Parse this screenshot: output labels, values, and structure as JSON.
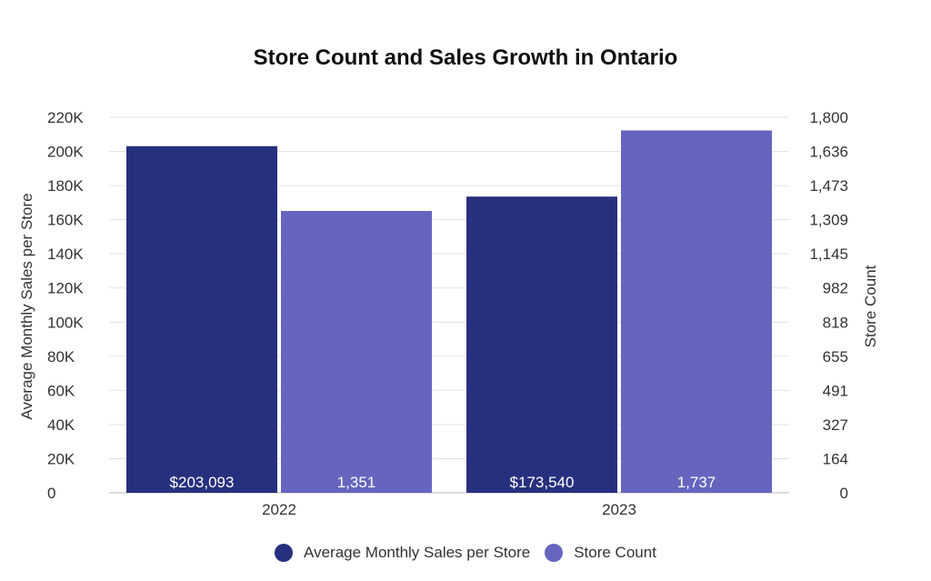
{
  "chart_data": {
    "type": "bar",
    "title": "Store Count and Sales Growth in Ontario",
    "categories": [
      "2022",
      "2023"
    ],
    "series": [
      {
        "name": "Average Monthly Sales per Store",
        "axis": "left",
        "color": "#27307e",
        "values": [
          203093,
          173540
        ],
        "labels": [
          "$203,093",
          "$173,540"
        ]
      },
      {
        "name": "Store Count",
        "axis": "right",
        "color": "#6565c0",
        "values": [
          1351,
          1737
        ],
        "labels": [
          "1,351",
          "1,737"
        ]
      }
    ],
    "ylabel": "Average Monthly Sales per Store",
    "ylim": [
      0,
      220000
    ],
    "yticks": [
      "0",
      "20K",
      "40K",
      "60K",
      "80K",
      "100K",
      "120K",
      "140K",
      "160K",
      "180K",
      "200K",
      "220K"
    ],
    "y2label": "Store Count",
    "y2lim": [
      0,
      1800
    ],
    "y2ticks": [
      "0",
      "164",
      "327",
      "491",
      "655",
      "818",
      "982",
      "1,145",
      "1,309",
      "1,473",
      "1,636",
      "1,800"
    ],
    "grid": true,
    "legend_position": "bottom"
  }
}
